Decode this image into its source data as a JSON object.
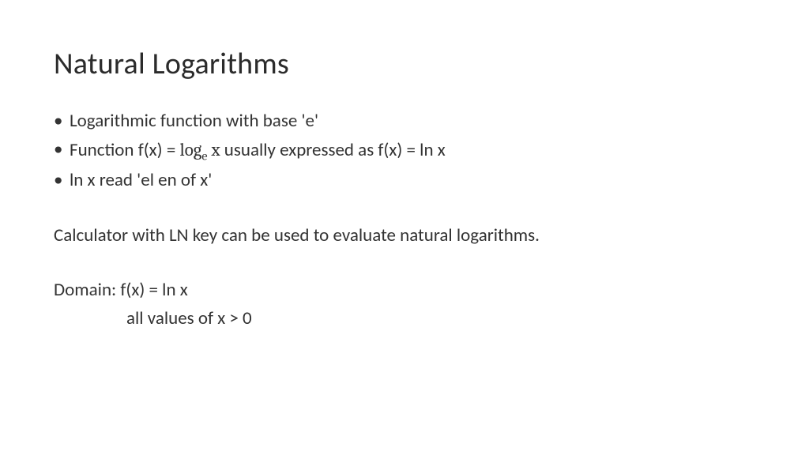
{
  "slide": {
    "title": "Natural Logarithms",
    "bullets": [
      {
        "text": "Logarithmic function with base 'e'"
      },
      {
        "prefix": "Function f(x) =  ",
        "math_log": "log",
        "math_sub": "e",
        "math_var": " x",
        "suffix": " usually expressed as f(x) = ln x"
      },
      {
        "text": "ln x read 'el en of x'"
      }
    ],
    "paragraph": "Calculator with LN key can be used to evaluate natural logarithms.",
    "domain": {
      "line1": "Domain: f(x) = ln x",
      "line2": "all values of x > 0"
    }
  },
  "style": {
    "background_color": "#ffffff",
    "text_color": "#333333",
    "title_fontsize": 38,
    "body_fontsize": 23,
    "font_family": "Calibri"
  }
}
